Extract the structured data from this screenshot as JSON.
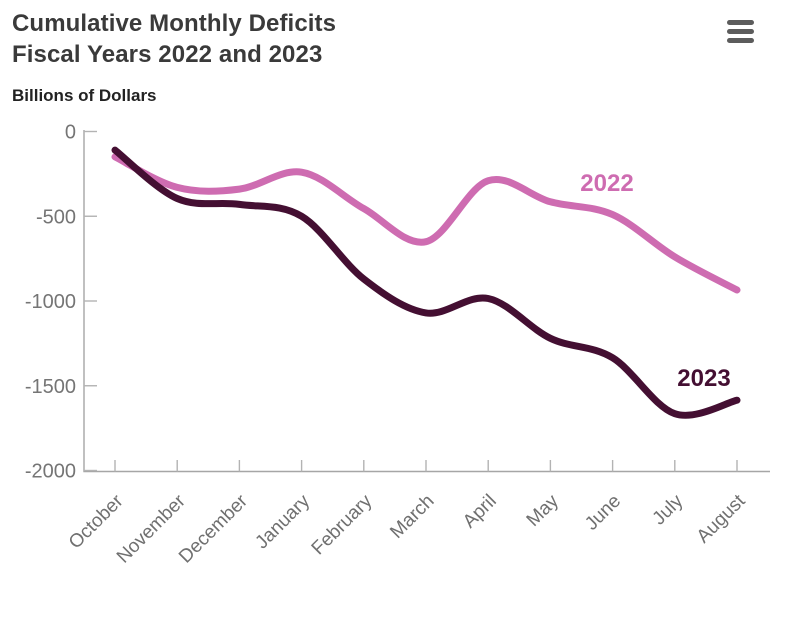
{
  "header": {
    "title_line1": "Cumulative Monthly Deficits",
    "title_line2": "Fiscal Years 2022 and 2023",
    "units_label": "Billions of Dollars"
  },
  "menu": {
    "icon": "hamburger-menu-icon",
    "color": "#5c5c5c"
  },
  "chart_data": {
    "type": "line",
    "title": "Cumulative Monthly Deficits Fiscal Years 2022 and 2023",
    "ylabel": "Billions of Dollars",
    "xlabel": "",
    "categories": [
      "October",
      "November",
      "December",
      "January",
      "February",
      "March",
      "April",
      "May",
      "June",
      "July",
      "August"
    ],
    "series": [
      {
        "name": "2022",
        "color": "#ce6cb1",
        "values": [
          -150,
          -330,
          -340,
          -240,
          -455,
          -650,
          -290,
          -415,
          -490,
          -740,
          -935
        ]
      },
      {
        "name": "2023",
        "color": "#440f32",
        "values": [
          -110,
          -395,
          -430,
          -500,
          -870,
          -1070,
          -985,
          -1220,
          -1335,
          -1665,
          -1585
        ]
      }
    ],
    "y_tick_labels": [
      "0",
      "-500",
      "-1000",
      "-1500",
      "-2000"
    ],
    "y_tick_values": [
      0,
      -500,
      -1000,
      -1500,
      -2000
    ],
    "ylim": [
      -2000,
      0
    ],
    "grid": false,
    "smoothed": true,
    "legend_position": "end-of-line-labels",
    "axis_color": "#a6a6a6",
    "tick_color": "#b3b3b3",
    "tick_label_color": "#757575"
  }
}
